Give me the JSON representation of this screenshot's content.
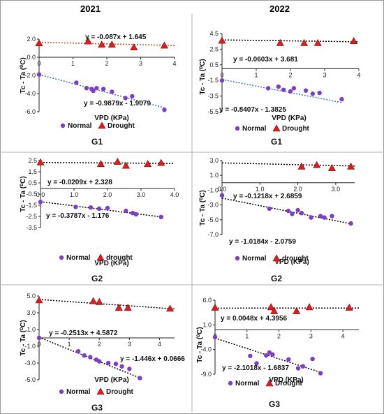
{
  "column_titles": [
    "2021",
    "2022"
  ],
  "colors": {
    "normal": "#7b3fc4",
    "drought": "#e21c1c",
    "normal_trend": "#3a78b5",
    "drought_trend": "#c04a1a",
    "black": "#000000"
  },
  "chart_data": [
    {
      "id": "2021-G1",
      "type": "scatter",
      "title": "G1",
      "xlabel": "VPD (KPa)",
      "ylabel": "Tc - Ta (⁰C)",
      "xlim": [
        0,
        4
      ],
      "ylim": [
        -6,
        2
      ],
      "xticks": [
        "0",
        "1",
        "2",
        "3",
        "4"
      ],
      "xtick_values": [
        0,
        1,
        2,
        3,
        4
      ],
      "yticks": [
        "2.0",
        "0.0",
        "-2.0",
        "-4.0",
        "-6.0"
      ],
      "ytick_values": [
        2,
        0,
        -2,
        -4,
        -6
      ],
      "xaxis_at_y": 0,
      "legend": [
        "Normal",
        "Drought"
      ],
      "normal_points": [
        [
          0.0,
          -1.9
        ],
        [
          1.1,
          -2.8
        ],
        [
          1.4,
          -3.4
        ],
        [
          1.55,
          -3.5
        ],
        [
          1.6,
          -3.7
        ],
        [
          1.7,
          -3.4
        ],
        [
          1.9,
          -3.5
        ],
        [
          2.15,
          -3.8
        ],
        [
          2.55,
          -4.5
        ],
        [
          2.75,
          -4.3
        ],
        [
          3.7,
          -5.8
        ]
      ],
      "drought_points": [
        [
          0.0,
          1.55
        ],
        [
          1.45,
          1.75
        ],
        [
          1.85,
          1.4
        ],
        [
          2.15,
          1.4
        ],
        [
          2.8,
          1.1
        ],
        [
          3.7,
          1.3
        ]
      ],
      "normal_eq": "y = -0.9879x - 1.9079",
      "drought_eq": "y = -0.087x + 1.645",
      "normal_fit": [
        -0.9879,
        -1.9079
      ],
      "drought_fit": [
        -0.087,
        1.645
      ],
      "normal_line_style": "blue",
      "drought_line_style": "orange"
    },
    {
      "id": "2022-G1",
      "type": "scatter",
      "title": "G1",
      "xlabel": "VPD (KPa)",
      "ylabel": "Tc - Ta (⁰C)",
      "xlim": [
        0,
        4
      ],
      "ylim": [
        -5.5,
        4.5
      ],
      "xticks": [
        "0",
        "1",
        "2",
        "3",
        "4"
      ],
      "xtick_values": [
        0,
        1,
        2,
        3,
        4
      ],
      "yticks": [
        "4.5",
        "2.5",
        "0.5",
        "-1.5",
        "-3.5",
        "-5.5"
      ],
      "ytick_values": [
        4.5,
        2.5,
        0.5,
        -1.5,
        -3.5,
        -5.5
      ],
      "xaxis_at_y": 0,
      "legend": [
        "Normal",
        "Drought"
      ],
      "normal_points": [
        [
          0.0,
          -1.5
        ],
        [
          1.35,
          -2.5
        ],
        [
          1.65,
          -2.3
        ],
        [
          1.8,
          -2.7
        ],
        [
          2.0,
          -2.9
        ],
        [
          2.1,
          -2.5
        ],
        [
          2.45,
          -2.8
        ],
        [
          2.65,
          -3.2
        ],
        [
          2.85,
          -3.1
        ],
        [
          3.5,
          -3.9
        ]
      ],
      "drought_points": [
        [
          0.0,
          3.6
        ],
        [
          1.7,
          3.3
        ],
        [
          2.4,
          3.3
        ],
        [
          2.8,
          3.3
        ],
        [
          3.85,
          3.55
        ]
      ],
      "normal_eq": "y = -0.8407x - 1.3825",
      "drought_eq": "y = -0.0603x + 3.681",
      "normal_fit": [
        -0.8407,
        -1.3825
      ],
      "drought_fit": [
        -0.0603,
        3.681
      ],
      "normal_line_style": "blue",
      "drought_line_style": "black"
    },
    {
      "id": "2021-G2",
      "type": "scatter",
      "title": "G2",
      "xlabel": "VPD (KPa)",
      "ylabel": "Tc - Ta (⁰C)",
      "xlim": [
        0,
        4
      ],
      "ylim": [
        -3.5,
        2.5
      ],
      "xticks": [
        "0.0",
        "1.0",
        "2.0",
        "3.0",
        "4.0"
      ],
      "xtick_values": [
        0,
        1,
        2,
        3,
        4
      ],
      "yticks": [
        "2.5",
        "1.5",
        "0.5",
        "-0.5",
        "-1.5",
        "-2.5",
        "-3.5"
      ],
      "ytick_values": [
        2.5,
        1.5,
        0.5,
        -0.5,
        -1.5,
        -2.5,
        -3.5
      ],
      "xaxis_at_y": 0,
      "legend": [
        "Normal",
        "drought"
      ],
      "normal_points": [
        [
          0.0,
          -1.2
        ],
        [
          1.05,
          -1.65
        ],
        [
          1.5,
          -1.7
        ],
        [
          1.75,
          -1.8
        ],
        [
          2.0,
          -1.75
        ],
        [
          2.55,
          -2.0
        ],
        [
          2.75,
          -2.2
        ],
        [
          2.85,
          -2.3
        ],
        [
          3.6,
          -2.55
        ]
      ],
      "drought_points": [
        [
          0.0,
          2.35
        ],
        [
          1.8,
          2.2
        ],
        [
          2.3,
          2.4
        ],
        [
          2.55,
          2.05
        ],
        [
          3.2,
          2.2
        ],
        [
          3.6,
          2.3
        ]
      ],
      "normal_eq": "y = -0.3787x - 1.176",
      "drought_eq": "y = -0.0209x + 2.328",
      "normal_fit": [
        -0.3787,
        -1.176
      ],
      "drought_fit": [
        -0.0209,
        2.328
      ],
      "normal_line_style": "black",
      "drought_line_style": "black"
    },
    {
      "id": "2022-G2",
      "type": "scatter",
      "title": "G2",
      "xlabel": "VPD (KPa)",
      "ylabel": "Tc - Ta (⁰C)",
      "xlim": [
        0,
        3.5
      ],
      "ylim": [
        -7,
        3
      ],
      "xticks": [
        "0.0",
        "1.0",
        "2.0",
        "3.0"
      ],
      "xtick_values": [
        0,
        1,
        2,
        3
      ],
      "yticks": [
        "3.0",
        "1.0",
        "-1.0",
        "-3.0",
        "-5.0",
        "-7.0"
      ],
      "ytick_values": [
        3,
        1,
        -1,
        -3,
        -5,
        -7
      ],
      "xaxis_at_y": 0,
      "legend": [
        "Normal",
        "drought"
      ],
      "normal_points": [
        [
          0.0,
          -1.7
        ],
        [
          1.25,
          -3.5
        ],
        [
          1.75,
          -3.8
        ],
        [
          1.85,
          -4.2
        ],
        [
          2.0,
          -3.7
        ],
        [
          2.1,
          -4.1
        ],
        [
          2.35,
          -4.7
        ],
        [
          2.6,
          -4.5
        ],
        [
          2.7,
          -4.7
        ],
        [
          2.9,
          -4.5
        ],
        [
          3.4,
          -5.5
        ]
      ],
      "drought_points": [
        [
          2.1,
          2.2
        ],
        [
          2.5,
          2.4
        ],
        [
          2.9,
          2.0
        ],
        [
          3.4,
          2.2
        ]
      ],
      "normal_eq": "y = -1.0184x - 2.0759",
      "drought_eq": "y = -0.1218x + 2.6859",
      "normal_fit": [
        -1.0184,
        -2.0759
      ],
      "drought_fit": [
        -0.1218,
        2.6859
      ],
      "normal_line_style": "black",
      "drought_line_style": "black"
    },
    {
      "id": "2021-G3",
      "type": "scatter",
      "title": "G3",
      "xlabel": "VPD (KPa)",
      "ylabel": "Tc - Ta (⁰C)",
      "xlim": [
        0,
        4.5
      ],
      "ylim": [
        -5,
        5
      ],
      "xticks": [
        "0",
        "1",
        "2",
        "3",
        "4"
      ],
      "xtick_values": [
        0,
        1,
        2,
        3,
        4
      ],
      "yticks": [
        "5.0",
        "3.0",
        "1.0",
        "-1.0",
        "-3.0",
        "-5.0"
      ],
      "ytick_values": [
        5,
        3,
        1,
        -1,
        -3,
        -5
      ],
      "xaxis_at_y": 0,
      "legend": [
        "Normal",
        "Drought"
      ],
      "normal_points": [
        [
          0.0,
          0.0
        ],
        [
          1.3,
          -1.6
        ],
        [
          1.5,
          -2.1
        ],
        [
          1.7,
          -2.3
        ],
        [
          1.9,
          -2.6
        ],
        [
          2.0,
          -2.8
        ],
        [
          2.3,
          -3.0
        ],
        [
          2.55,
          -3.1
        ],
        [
          2.75,
          -3.4
        ],
        [
          3.0,
          -3.7
        ],
        [
          3.35,
          -4.8
        ]
      ],
      "drought_points": [
        [
          0.0,
          4.5
        ],
        [
          1.8,
          4.4
        ],
        [
          2.0,
          4.3
        ],
        [
          2.65,
          3.6
        ],
        [
          2.95,
          3.6
        ],
        [
          4.35,
          3.5
        ]
      ],
      "normal_eq": "y = -1.446x + 0.0666",
      "drought_eq": "y = -0.2513x + 4.5872",
      "normal_fit": [
        -1.446,
        0.0666
      ],
      "drought_fit": [
        -0.2513,
        4.5872
      ],
      "normal_line_style": "black",
      "drought_line_style": "black"
    },
    {
      "id": "2022-G3",
      "type": "scatter",
      "title": "G3",
      "xlabel": "VPD (KPa)",
      "ylabel": "Tc - Ta (⁰C)",
      "xlim": [
        0,
        4.5
      ],
      "ylim": [
        -9,
        6
      ],
      "xticks": [
        "0",
        "1",
        "2",
        "3",
        "4"
      ],
      "xtick_values": [
        0,
        1,
        2,
        3,
        4
      ],
      "yticks": [
        "6.0",
        "1.0",
        "-4.0",
        "-9.0"
      ],
      "ytick_values": [
        6,
        1,
        -4,
        -9
      ],
      "xaxis_at_y": 0,
      "legend": [
        "Normal",
        "Drought"
      ],
      "normal_points": [
        [
          0.0,
          -1.5
        ],
        [
          1.1,
          -5.3
        ],
        [
          1.3,
          -6.8
        ],
        [
          1.6,
          -5.2
        ],
        [
          1.7,
          -4.6
        ],
        [
          1.8,
          -5.0
        ],
        [
          2.3,
          -6.0
        ],
        [
          2.6,
          -7.8
        ],
        [
          2.75,
          -7.4
        ],
        [
          3.05,
          -5.9
        ],
        [
          3.3,
          -8.8
        ]
      ],
      "drought_points": [
        [
          0.0,
          4.5
        ],
        [
          1.75,
          4.6
        ],
        [
          1.85,
          3.8
        ],
        [
          2.55,
          3.8
        ],
        [
          2.95,
          4.6
        ],
        [
          4.2,
          4.5
        ]
      ],
      "normal_eq": "y = -2.1018x - 1.6837",
      "drought_eq": "y = 0.0048x + 4.3956",
      "normal_fit": [
        -2.1018,
        -1.6837
      ],
      "drought_fit": [
        0.0048,
        4.3956
      ],
      "normal_line_style": "black",
      "drought_line_style": "black"
    }
  ]
}
